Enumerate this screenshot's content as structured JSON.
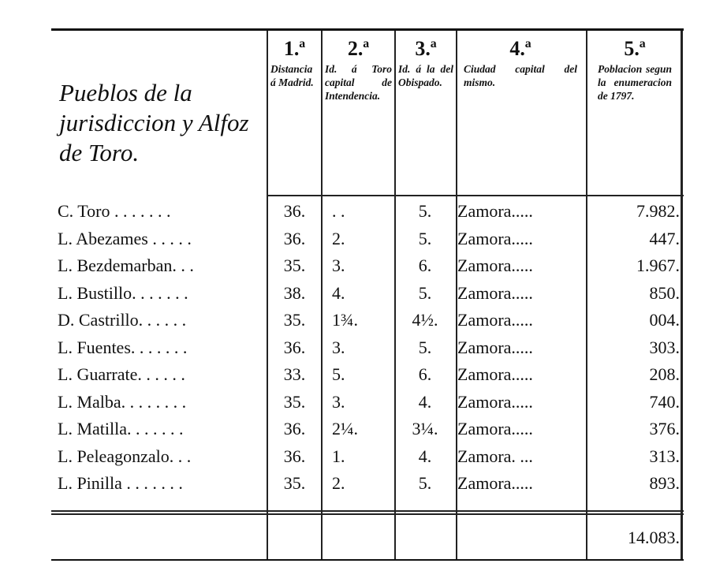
{
  "header": {
    "title": "Pueblos de la jurisdiccion y Alfoz de Toro.",
    "columns": [
      {
        "number": "1.ª",
        "label": "Distancia á Madrid."
      },
      {
        "number": "2.ª",
        "label": "Id. á Toro capital de Intendencia."
      },
      {
        "number": "3.ª",
        "label": "Id. á la del Obispado."
      },
      {
        "number": "4.ª",
        "label": "Ciudad capital del mismo."
      },
      {
        "number": "5.ª",
        "label": "Poblacion segun la enumeracion de 1797."
      }
    ]
  },
  "rows": [
    {
      "name": "C. Toro . . . . . . .",
      "madrid": "36.",
      "toro": ". .",
      "obispado": "5.",
      "capital": "Zamora.....",
      "poblacion": "7.982."
    },
    {
      "name": "L. Abezames . . . . .",
      "madrid": "36.",
      "toro": "2.",
      "obispado": "5.",
      "capital": "Zamora.....",
      "poblacion": "447."
    },
    {
      "name": "L. Bezdemarban. . .",
      "madrid": "35.",
      "toro": "3.",
      "obispado": "6.",
      "capital": "Zamora.....",
      "poblacion": "1.967."
    },
    {
      "name": "L. Bustillo. . . . . . .",
      "madrid": "38.",
      "toro": "4.",
      "obispado": "5.",
      "capital": "Zamora.....",
      "poblacion": "850."
    },
    {
      "name": "D. Castrillo. . . . . .",
      "madrid": "35.",
      "toro": "1¾.",
      "obispado": "4½.",
      "capital": "Zamora.....",
      "poblacion": "004."
    },
    {
      "name": "L. Fuentes. . . . . . .",
      "madrid": "36.",
      "toro": "3.",
      "obispado": "5.",
      "capital": "Zamora.....",
      "poblacion": "303."
    },
    {
      "name": "L. Guarrate. . . . . .",
      "madrid": "33.",
      "toro": "5.",
      "obispado": "6.",
      "capital": "Zamora.....",
      "poblacion": "208."
    },
    {
      "name": "L. Malba. . . . . . . .",
      "madrid": "35.",
      "toro": "3.",
      "obispado": "4.",
      "capital": "Zamora.....",
      "poblacion": "740."
    },
    {
      "name": "L. Matilla. . . . . . .",
      "madrid": "36.",
      "toro": "2¼.",
      "obispado": "3¼.",
      "capital": "Zamora.....",
      "poblacion": "376."
    },
    {
      "name": "L. Peleagonzalo. . .",
      "madrid": "36.",
      "toro": "1.",
      "obispado": "4.",
      "capital": "Zamora. ...",
      "poblacion": "313."
    },
    {
      "name": "L. Pinilla . . . . . . .",
      "madrid": "35.",
      "toro": "2.",
      "obispado": "5.",
      "capital": "Zamora.....",
      "poblacion": "893."
    }
  ],
  "total": "14.083."
}
